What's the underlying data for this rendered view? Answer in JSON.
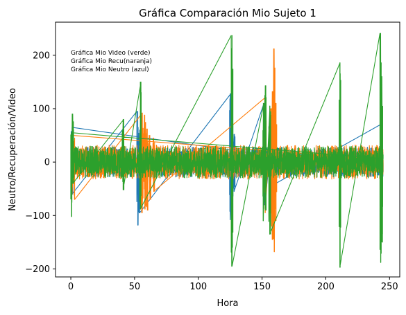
{
  "chart_data": {
    "type": "line",
    "title": "Gráfica Comparación Mio Sujeto 1",
    "xlabel": "Hora",
    "ylabel": "Neutro/Recuperación/Video",
    "xlim": [
      -12,
      258
    ],
    "ylim": [
      -215,
      262
    ],
    "xticks": [
      0,
      50,
      100,
      150,
      200,
      250
    ],
    "yticks": [
      -200,
      -100,
      0,
      100,
      200
    ],
    "grid": false,
    "annotations": [
      "Gráfica Mio Video (verde)",
      "Gráfica Mio Recu(naranja)",
      "Gráfica Mio Neutro (azul)"
    ],
    "series": [
      {
        "color": "#1f77b4",
        "x_range": [
          0,
          245
        ],
        "noise_band": [
          -28,
          28
        ],
        "spikes": [
          {
            "x": 1,
            "min": -60,
            "max": 65
          },
          {
            "x": 52.5,
            "min": -118,
            "max": 95
          },
          {
            "x": 54,
            "min": -95,
            "max": 60
          },
          {
            "x": 125,
            "min": -108,
            "max": 128
          },
          {
            "x": 126.5,
            "min": -80,
            "max": 70
          },
          {
            "x": 128,
            "min": -55,
            "max": 52
          },
          {
            "x": 152,
            "min": -80,
            "max": 110
          },
          {
            "x": 157,
            "min": -45,
            "max": 40
          },
          {
            "x": 243.5,
            "min": -90,
            "max": 70
          }
        ]
      },
      {
        "color": "#ff7f0e",
        "x_range": [
          0,
          245
        ],
        "noise_band": [
          -32,
          32
        ],
        "spikes": [
          {
            "x": 1,
            "min": -60,
            "max": 50
          },
          {
            "x": 3,
            "min": -70,
            "max": 45
          },
          {
            "x": 56,
            "min": -95,
            "max": 92
          },
          {
            "x": 58,
            "min": -88,
            "max": 88
          },
          {
            "x": 60,
            "min": -90,
            "max": 62
          },
          {
            "x": 62,
            "min": -70,
            "max": 50
          },
          {
            "x": 65,
            "min": -55,
            "max": 45
          },
          {
            "x": 152.5,
            "min": -95,
            "max": 120
          },
          {
            "x": 157.5,
            "min": -120,
            "max": 100
          },
          {
            "x": 158.5,
            "min": -145,
            "max": 132
          },
          {
            "x": 159.5,
            "min": -168,
            "max": 212
          },
          {
            "x": 161,
            "min": -110,
            "max": 110
          }
        ]
      },
      {
        "color": "#2ca02c",
        "x_range": [
          0,
          245
        ],
        "noise_band": [
          -30,
          30
        ],
        "spikes": [
          {
            "x": 0.5,
            "min": -102,
            "max": 55
          },
          {
            "x": 1.5,
            "min": -40,
            "max": 90
          },
          {
            "x": 41,
            "min": -52,
            "max": 80
          },
          {
            "x": 54.5,
            "min": -88,
            "max": 150
          },
          {
            "x": 126.5,
            "min": -195,
            "max": 237
          },
          {
            "x": 151,
            "min": -110,
            "max": 110
          },
          {
            "x": 152.5,
            "min": -90,
            "max": 143
          },
          {
            "x": 156,
            "min": -135,
            "max": 105
          },
          {
            "x": 211,
            "min": -197,
            "max": 186
          },
          {
            "x": 243,
            "min": -188,
            "max": 241
          },
          {
            "x": 244,
            "min": -150,
            "max": 160
          }
        ]
      }
    ]
  }
}
